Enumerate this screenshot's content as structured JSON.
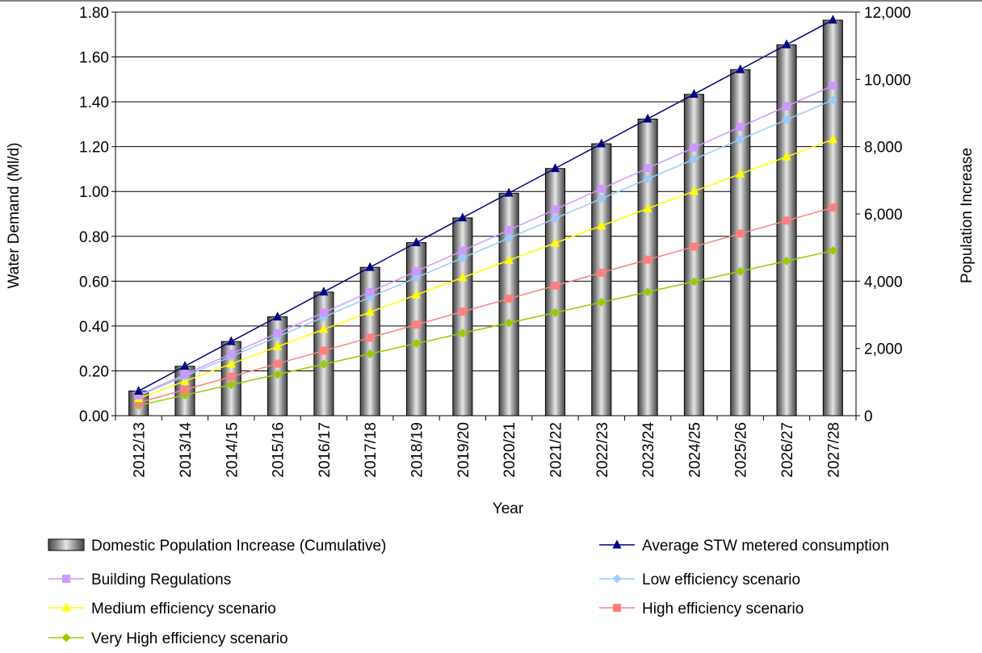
{
  "chart_data": {
    "type": "bar+line",
    "title": "",
    "xlabel": "Year",
    "ylabel": "Water Demand (Ml/d)",
    "y2label": "Population Increase",
    "ylim": [
      0,
      1.8
    ],
    "y2lim": [
      0,
      12000
    ],
    "yticks": [
      "0.00",
      "0.20",
      "0.40",
      "0.60",
      "0.80",
      "1.00",
      "1.20",
      "1.40",
      "1.60",
      "1.80"
    ],
    "y2ticks": [
      "0",
      "2,000",
      "4,000",
      "6,000",
      "8,000",
      "10,000",
      "12,000"
    ],
    "grid": true,
    "legend_position": "bottom",
    "categories": [
      "2012/13",
      "2013/14",
      "2014/15",
      "2015/16",
      "2016/17",
      "2017/18",
      "2018/19",
      "2019/20",
      "2020/21",
      "2021/22",
      "2022/23",
      "2023/24",
      "2024/25",
      "2025/26",
      "2026/27",
      "2027/28"
    ],
    "bar_series": {
      "name": "Domestic Population Increase (Cumulative)",
      "axis": "right",
      "values": [
        735,
        1470,
        2205,
        2940,
        3675,
        4410,
        5145,
        5880,
        6615,
        7350,
        8085,
        8820,
        9555,
        10290,
        11025,
        11760
      ]
    },
    "series": [
      {
        "name": "Average STW metered consumption",
        "color": "#000080",
        "marker": "triangle",
        "values": [
          0.11,
          0.221,
          0.331,
          0.441,
          0.552,
          0.662,
          0.772,
          0.883,
          0.993,
          1.103,
          1.213,
          1.324,
          1.434,
          1.544,
          1.655,
          1.765
        ]
      },
      {
        "name": "Building Regulations",
        "color": "#cc99ff",
        "marker": "square",
        "values": [
          0.092,
          0.184,
          0.276,
          0.368,
          0.46,
          0.552,
          0.644,
          0.736,
          0.828,
          0.92,
          1.012,
          1.104,
          1.196,
          1.288,
          1.38,
          1.472
        ]
      },
      {
        "name": "Low efficiency scenario",
        "color": "#99ccff",
        "marker": "diamond",
        "values": [
          0.088,
          0.176,
          0.264,
          0.352,
          0.44,
          0.528,
          0.616,
          0.704,
          0.792,
          0.88,
          0.968,
          1.056,
          1.144,
          1.232,
          1.32,
          1.408
        ]
      },
      {
        "name": "Medium efficiency scenario",
        "color": "#ffff00",
        "marker": "triangle",
        "values": [
          0.077,
          0.154,
          0.231,
          0.308,
          0.385,
          0.462,
          0.539,
          0.616,
          0.693,
          0.77,
          0.847,
          0.924,
          1.001,
          1.078,
          1.155,
          1.232
        ]
      },
      {
        "name": "High efficiency scenario",
        "color": "#ff8080",
        "marker": "square",
        "values": [
          0.058,
          0.116,
          0.174,
          0.232,
          0.29,
          0.348,
          0.406,
          0.464,
          0.522,
          0.58,
          0.638,
          0.696,
          0.754,
          0.812,
          0.87,
          0.928
        ]
      },
      {
        "name": "Very High efficiency scenario",
        "color": "#99cc00",
        "marker": "diamond",
        "values": [
          0.046,
          0.092,
          0.138,
          0.184,
          0.23,
          0.276,
          0.322,
          0.368,
          0.414,
          0.46,
          0.506,
          0.552,
          0.598,
          0.644,
          0.69,
          0.736
        ]
      }
    ]
  }
}
